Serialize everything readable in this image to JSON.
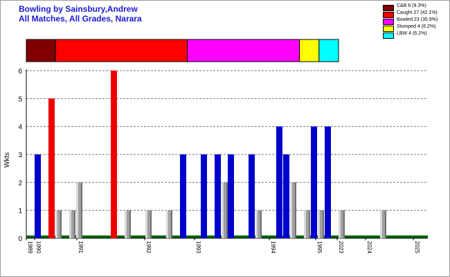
{
  "title": "Bowling by Sainsbury,Andrew",
  "subtitle": "All Matches, All Grades, Narara",
  "legend": [
    {
      "label": "C&B 6 (9.3%)",
      "color": "#800000"
    },
    {
      "label": "Caught 27 (42.1%)",
      "color": "#ff0000"
    },
    {
      "label": "Bowled 23 (35.9%)",
      "color": "#ff00ff"
    },
    {
      "label": "Stumped 4 (6.2%)",
      "color": "#ffff00"
    },
    {
      "label": "LBW 4 (6.2%)",
      "color": "#00ffff"
    }
  ],
  "colors": {
    "blue": "#0000cc",
    "red": "#ee0000",
    "gray": "#a0a0a0",
    "baseline": "#006600",
    "title": "#1a1ad0"
  },
  "chart_data": [
    {
      "type": "bar",
      "orientation": "horizontal-stacked",
      "categories": [
        "C&B",
        "Caught",
        "Bowled",
        "Stumped",
        "LBW"
      ],
      "values": [
        6,
        27,
        23,
        4,
        4
      ],
      "percent": [
        9.3,
        42.1,
        35.9,
        6.2,
        6.2
      ],
      "legend_position": "top-right"
    },
    {
      "type": "bar",
      "ylabel": "Wkts",
      "xlabel": "",
      "ylim": [
        0,
        6
      ],
      "yticks": [
        0,
        1,
        2,
        3,
        4,
        5,
        6
      ],
      "grid": true,
      "x_labels": [
        "1989",
        "1990",
        "1991",
        "1992",
        "1993",
        "1994",
        "1995",
        "2023",
        "2024",
        "2025"
      ],
      "series": [
        {
          "values": [
            3,
            0,
            0,
            0,
            0,
            0,
            0,
            0,
            0,
            0,
            3,
            3,
            3,
            3,
            3,
            0,
            4,
            0,
            3,
            4,
            0,
            0,
            0,
            0,
            0,
            4
          ],
          "color": "blue"
        },
        {
          "values": [
            0,
            5,
            0,
            0,
            0,
            6,
            0,
            0,
            0,
            0,
            0,
            0,
            0,
            0,
            0,
            0,
            0,
            0,
            0,
            0,
            0,
            0,
            0,
            0,
            0,
            0
          ],
          "color": "red"
        },
        {
          "values": [
            1,
            1,
            2,
            1,
            1,
            1,
            2,
            1,
            1,
            2,
            1,
            1,
            1,
            1
          ],
          "color": "gray"
        }
      ]
    }
  ]
}
